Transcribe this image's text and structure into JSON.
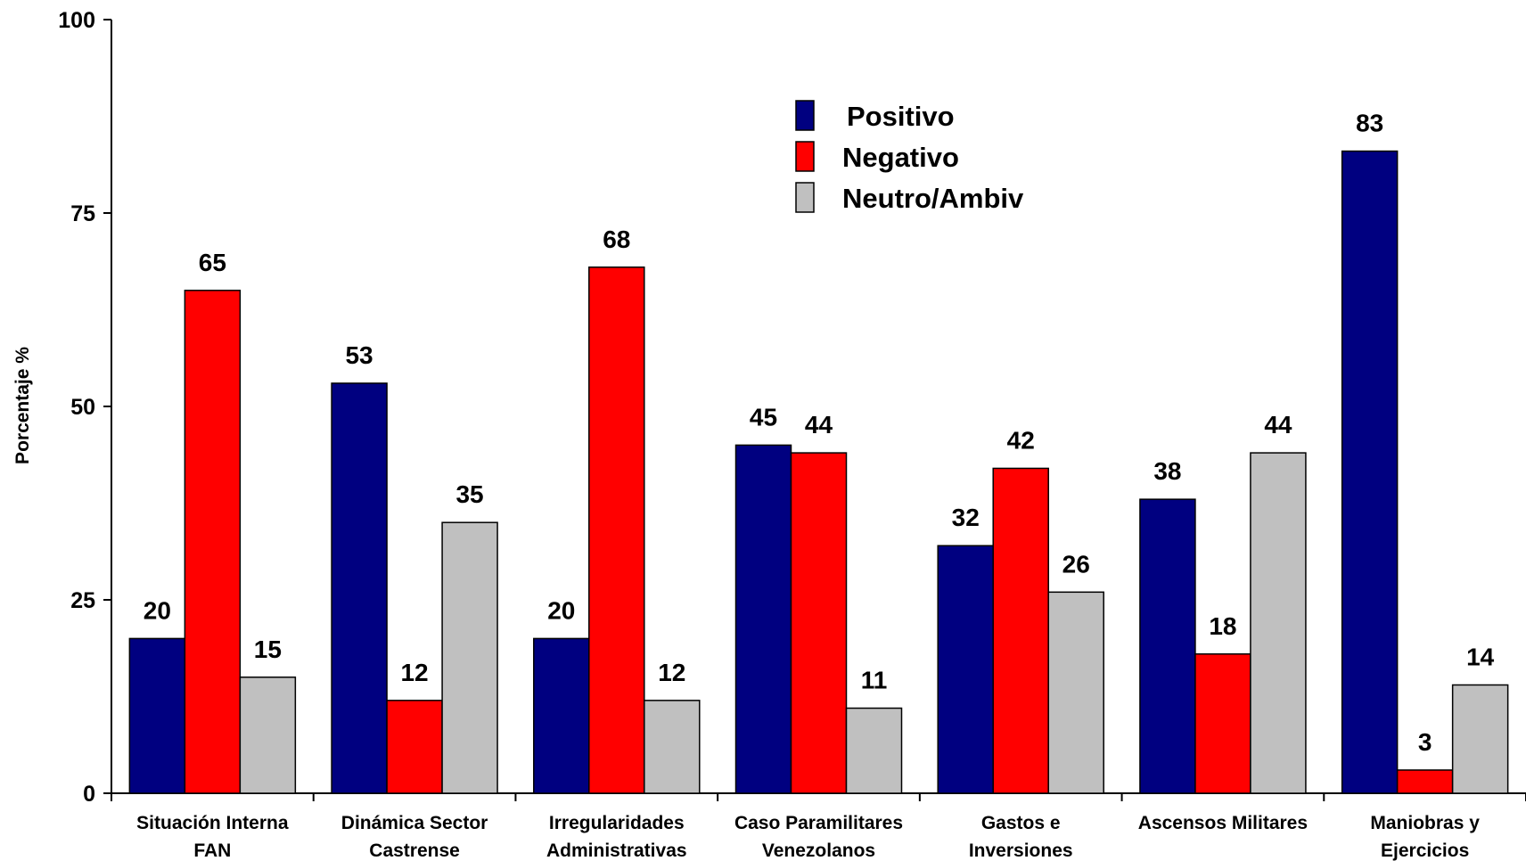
{
  "chart_data": {
    "type": "bar",
    "title": "",
    "xlabel": "",
    "ylabel": "Porcentaje %",
    "ylim": [
      0,
      100
    ],
    "yticks": [
      0,
      25,
      50,
      75,
      100
    ],
    "grid": false,
    "legend_position": "top-center",
    "categories": [
      [
        "Situación Interna",
        "FAN"
      ],
      [
        "Dinámica Sector",
        "Castrense"
      ],
      [
        "Irregularidades",
        "Administrativas"
      ],
      [
        "Caso Paramilitares",
        "Venezolanos"
      ],
      [
        "Gastos e",
        "Inversiones"
      ],
      [
        "Ascensos Militares"
      ],
      [
        "Maniobras y",
        "Ejercicios"
      ]
    ],
    "series": [
      {
        "name": "Positivo",
        "color": "#000080",
        "values": [
          20,
          53,
          20,
          45,
          32,
          38,
          83
        ]
      },
      {
        "name": "Negativo",
        "color": "#ff0000",
        "values": [
          65,
          12,
          68,
          44,
          42,
          18,
          3
        ]
      },
      {
        "name": "Neutro/Ambiv",
        "color": "#c0c0c0",
        "values": [
          15,
          35,
          12,
          11,
          26,
          44,
          14
        ]
      }
    ]
  }
}
